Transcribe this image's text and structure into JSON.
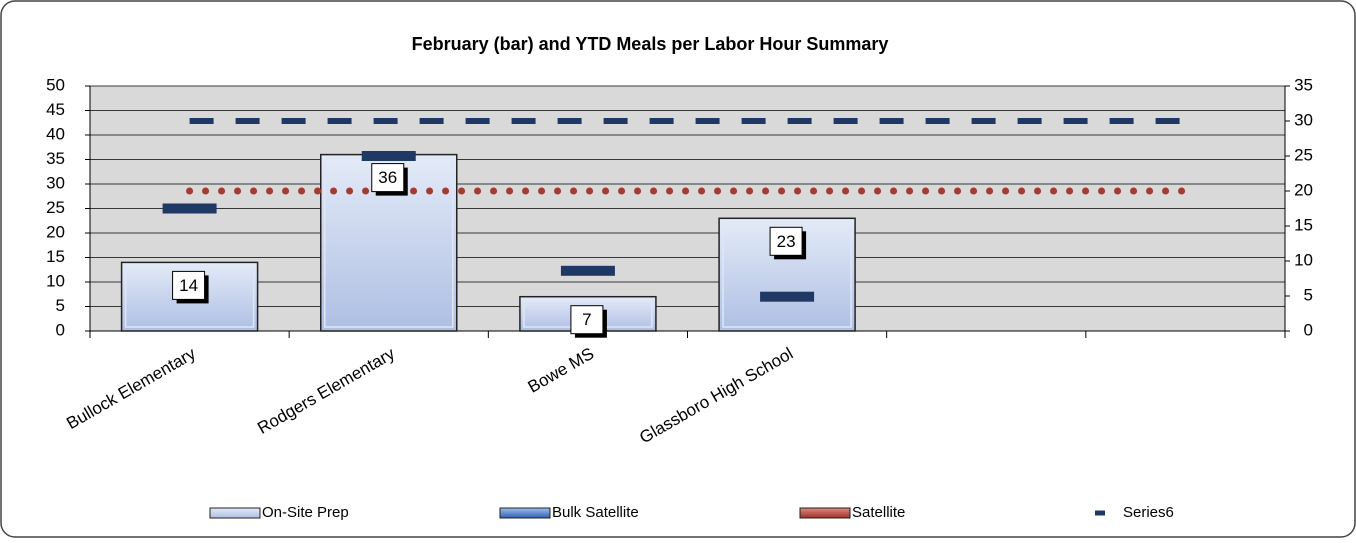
{
  "chart_data": {
    "type": "bar",
    "title": "February (bar) and YTD Meals per Labor Hour Summary",
    "categories": [
      "Bullock Elementary",
      "Rodgers Elementary",
      "Bowe MS",
      "Glassboro High School",
      null,
      null
    ],
    "ylim": [
      0,
      50
    ],
    "yticks": [
      0,
      5,
      10,
      15,
      20,
      25,
      30,
      35,
      40,
      45,
      50
    ],
    "y2lim": [
      0,
      35
    ],
    "y2ticks": [
      0,
      5,
      10,
      15,
      20,
      25,
      30,
      35
    ],
    "grid": true,
    "legend": "bottom",
    "series": [
      {
        "name": "On-Site Prep",
        "type": "bar",
        "color": "#c3d2ee",
        "values": [
          14,
          36,
          7,
          23,
          null,
          null
        ]
      },
      {
        "name": "Bulk Satellite",
        "type": "marker",
        "axis": "y2",
        "color": "#1f3864",
        "values": [
          17.5,
          25,
          8.6,
          4.9,
          null,
          null
        ]
      },
      {
        "name": "Satellite",
        "type": "line",
        "style": "dotted",
        "axis": "y2",
        "color": "#a33b32",
        "values": [
          20,
          20,
          20,
          20,
          20,
          20
        ]
      },
      {
        "name": "Series6",
        "type": "line",
        "style": "dashed",
        "axis": "y2",
        "color": "#1f3864",
        "values": [
          30,
          30,
          30,
          30,
          30,
          30
        ]
      }
    ]
  }
}
